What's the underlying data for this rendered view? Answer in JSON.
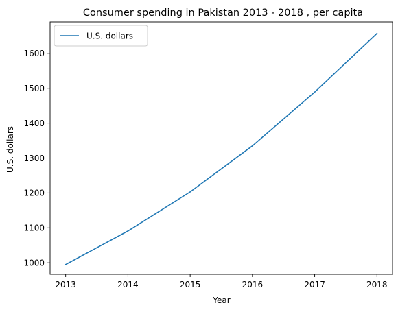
{
  "chart_data": {
    "type": "line",
    "title": "Consumer spending in Pakistan 2013 - 2018 , per capita",
    "xlabel": "Year",
    "ylabel": "U.S. dollars",
    "x": [
      2013,
      2014,
      2015,
      2016,
      2017,
      2018
    ],
    "x_tick_labels": [
      "2013",
      "2014",
      "2015",
      "2016",
      "2017",
      "2018"
    ],
    "y_ticks": [
      1000,
      1100,
      1200,
      1300,
      1400,
      1500,
      1600
    ],
    "y_tick_labels": [
      "1000",
      "1100",
      "1200",
      "1300",
      "1400",
      "1500",
      "1600"
    ],
    "xlim": [
      2012.75,
      2018.25
    ],
    "ylim": [
      967,
      1690
    ],
    "grid": false,
    "legend_position": "top-left",
    "series": [
      {
        "name": "U.S. dollars",
        "color": "#1f77b4",
        "values": [
          995,
          1091,
          1203,
          1335,
          1489,
          1657
        ]
      }
    ]
  }
}
